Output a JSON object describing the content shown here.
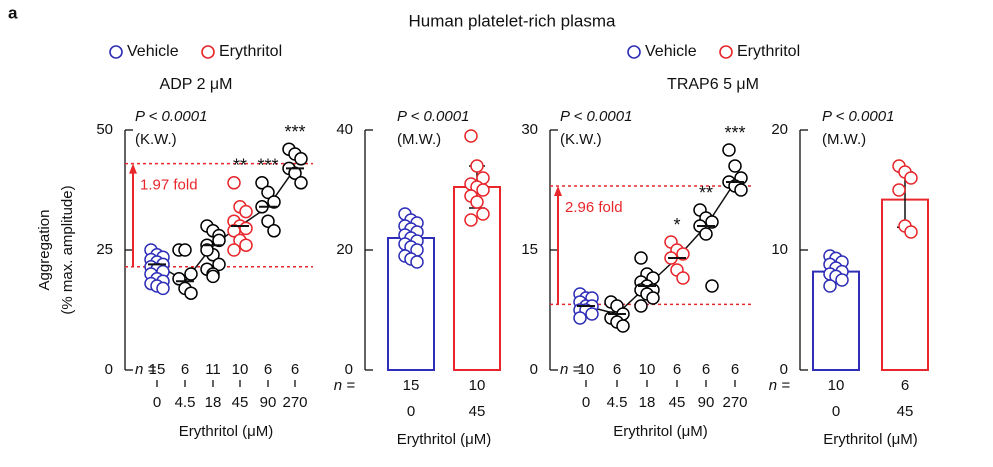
{
  "panel_label": "a",
  "title": "Human platelet-rich plasma",
  "ylabel": [
    "Aggregation",
    "(% max. amplitude)"
  ],
  "chart_data": [
    {
      "type": "dose_response",
      "subtitle": "ADP 2 μM",
      "legend": [
        {
          "name": "Vehicle",
          "color": "#2e2eb8"
        },
        {
          "name": "Erythritol",
          "color": "#e8262b"
        }
      ],
      "stat": "P < 0.0001",
      "test": "(K.W.)",
      "n_label": "n =",
      "xlabel": "Erythritol (μM)",
      "categories": [
        "0",
        "4.5",
        "18",
        "45",
        "90",
        "270"
      ],
      "n": [
        15,
        6,
        11,
        10,
        6,
        6
      ],
      "group_colors": [
        "#2e2eb8",
        "#000000",
        "#000000",
        "#e8262b",
        "#000000",
        "#000000"
      ],
      "medians": [
        22,
        18.5,
        26,
        30,
        34,
        42
      ],
      "points": [
        [
          25,
          24,
          23.5,
          23,
          22.5,
          22,
          21.5,
          21,
          20.5,
          20,
          19,
          18.5,
          18,
          17.5,
          17
        ],
        [
          25,
          25,
          20,
          19,
          17,
          16
        ],
        [
          30,
          29,
          28,
          26,
          24,
          22,
          21,
          20,
          27,
          25,
          19.5
        ],
        [
          39,
          34,
          33,
          31,
          30,
          29.5,
          29,
          27,
          26,
          25
        ],
        [
          39,
          37,
          35,
          34,
          31,
          29
        ],
        [
          46,
          45,
          44,
          42,
          41,
          39
        ]
      ],
      "significance": [
        null,
        null,
        null,
        "**",
        "***",
        "***"
      ],
      "reference_lines": [
        21.5,
        43
      ],
      "fold_label": "1.97 fold",
      "fold_color": "#e8262b",
      "ylim": [
        0,
        50
      ],
      "yticks": [
        0,
        25,
        50
      ]
    },
    {
      "type": "bar",
      "stat": "P < 0.0001",
      "test": "(M.W.)",
      "n_label": "n =",
      "xlabel": "Erythritol (μM)",
      "categories": [
        "0",
        "45"
      ],
      "n": [
        15,
        10
      ],
      "colors": [
        "#2e2eb8",
        "#e8262b"
      ],
      "values": [
        22,
        30.5
      ],
      "errors": [
        2,
        3.5
      ],
      "points": [
        [
          26,
          25,
          24.5,
          24,
          23.5,
          23,
          22.5,
          22,
          21.5,
          21,
          20.5,
          20,
          19,
          18.5,
          18
        ],
        [
          39,
          34,
          32,
          31,
          30.5,
          30,
          29,
          28,
          26,
          25
        ]
      ],
      "ylim": [
        0,
        40
      ],
      "yticks": [
        0,
        20,
        40
      ]
    },
    {
      "type": "dose_response",
      "subtitle": "TRAP6 5 μM",
      "legend": [
        {
          "name": "Vehicle",
          "color": "#2e2eb8"
        },
        {
          "name": "Erythritol",
          "color": "#e8262b"
        }
      ],
      "stat": "P < 0.0001",
      "test": "(K.W.)",
      "n_label": "n =",
      "xlabel": "Erythritol (μM)",
      "categories": [
        "0",
        "4.5",
        "18",
        "45",
        "90",
        "270"
      ],
      "n": [
        10,
        6,
        10,
        6,
        6,
        6
      ],
      "group_colors": [
        "#2e2eb8",
        "#000000",
        "#000000",
        "#e8262b",
        "#000000",
        "#000000"
      ],
      "medians": [
        8,
        7,
        10.5,
        14,
        18,
        23.5
      ],
      "points": [
        [
          9.5,
          9,
          9,
          8.5,
          8,
          8,
          7.5,
          7.5,
          7,
          6.5
        ],
        [
          8.5,
          8,
          7,
          6.5,
          6,
          5.5
        ],
        [
          14,
          12,
          11.5,
          11,
          10.5,
          10,
          10,
          9.5,
          9,
          8
        ],
        [
          16,
          15,
          14.5,
          14,
          12.5,
          11.5
        ],
        [
          20,
          19,
          18.5,
          18,
          17,
          10.5
        ],
        [
          27.5,
          25.5,
          24,
          23.5,
          23,
          22.5
        ]
      ],
      "significance": [
        null,
        null,
        null,
        "*",
        "**",
        "***"
      ],
      "reference_lines": [
        8.2,
        23
      ],
      "fold_label": "2.96 fold",
      "fold_color": "#e8262b",
      "ylim": [
        0,
        30
      ],
      "yticks": [
        0,
        15,
        30
      ]
    },
    {
      "type": "bar",
      "stat": "P < 0.0001",
      "test": "(M.W.)",
      "n_label": "n =",
      "xlabel": "Erythritol (μM)",
      "categories": [
        "0",
        "45"
      ],
      "n": [
        10,
        6
      ],
      "colors": [
        "#2e2eb8",
        "#e8262b"
      ],
      "values": [
        8.2,
        14.2
      ],
      "errors": [
        1,
        2.3
      ],
      "points": [
        [
          9.5,
          9.3,
          9,
          8.8,
          8.5,
          8.2,
          8,
          7.8,
          7.5,
          7
        ],
        [
          17,
          16.5,
          16,
          15,
          12,
          11.5
        ]
      ],
      "ylim": [
        0,
        20
      ],
      "yticks": [
        0,
        10,
        20
      ]
    }
  ]
}
